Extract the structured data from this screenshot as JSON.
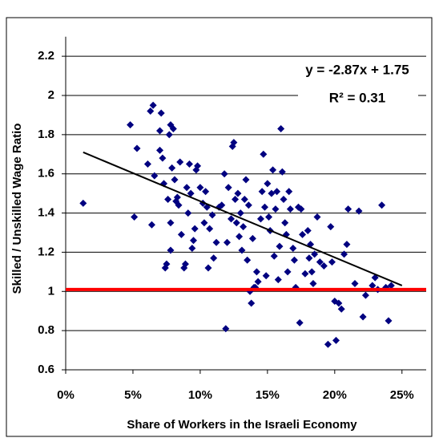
{
  "chart_data": {
    "type": "scatter",
    "x_label": "Share of Workers in the Israeli Economy",
    "y_label": "Skilled / Unskilled Wage Ratio",
    "annotations": [
      "y = -2.87x + 1.75",
      "R² = 0.31"
    ],
    "color": "#000080",
    "grid": true,
    "xlim": [
      0,
      26.8
    ],
    "ylim": [
      0.6,
      2.3
    ],
    "xticks": [
      {
        "value": 0,
        "label": "0%"
      },
      {
        "value": 5,
        "label": "5%"
      },
      {
        "value": 10,
        "label": "10%"
      },
      {
        "value": 15,
        "label": "15%"
      },
      {
        "value": 20,
        "label": "20%"
      },
      {
        "value": 25,
        "label": "25%"
      }
    ],
    "yticks": [
      0.6,
      0.8,
      1,
      1.2,
      1.4,
      1.6,
      1.8,
      2,
      2.2
    ],
    "trendline": {
      "color": "#000000",
      "x": [
        1.3,
        25
      ],
      "y": [
        1.71,
        1.03
      ]
    },
    "reference_line": {
      "value": 1.01,
      "color": "#ff0000"
    },
    "x": [
      1.3,
      4.8,
      5.1,
      5.3,
      6.1,
      6.3,
      6.5,
      6.4,
      6.6,
      7.0,
      7.0,
      7.1,
      7.2,
      7.3,
      7.4,
      7.5,
      7.6,
      7.7,
      7.8,
      7.9,
      7.8,
      7.8,
      8.0,
      8.1,
      8.2,
      8.3,
      8.4,
      8.5,
      8.6,
      8.8,
      8.9,
      9.0,
      9.1,
      9.2,
      9.3,
      9.4,
      9.5,
      9.6,
      9.7,
      9.8,
      10.0,
      10.2,
      10.3,
      10.4,
      10.5,
      10.6,
      10.7,
      10.9,
      11.0,
      11.2,
      11.4,
      11.6,
      11.8,
      11.9,
      12.0,
      12.1,
      12.3,
      12.4,
      12.5,
      12.6,
      12.7,
      12.8,
      12.9,
      13.0,
      13.1,
      13.2,
      13.3,
      13.4,
      13.5,
      13.6,
      13.7,
      13.8,
      13.9,
      14.0,
      14.1,
      14.2,
      14.3,
      14.5,
      14.6,
      14.7,
      14.8,
      14.9,
      15.0,
      15.1,
      15.2,
      15.3,
      15.4,
      15.5,
      15.6,
      15.7,
      15.8,
      15.9,
      16.0,
      16.1,
      16.2,
      16.3,
      16.4,
      16.5,
      16.6,
      16.7,
      16.9,
      17.0,
      17.1,
      17.3,
      17.4,
      17.5,
      17.6,
      17.8,
      18.0,
      18.1,
      18.2,
      18.3,
      18.4,
      18.5,
      18.7,
      18.9,
      19.2,
      19.5,
      19.7,
      19.8,
      20.0,
      20.1,
      20.3,
      20.5,
      20.7,
      20.9,
      21.0,
      21.5,
      21.8,
      22.1,
      22.3,
      22.8,
      23.0,
      23.2,
      23.5,
      23.8,
      24.0,
      24.2
    ],
    "values": [
      1.45,
      1.85,
      1.38,
      1.73,
      1.65,
      1.92,
      1.95,
      1.34,
      1.59,
      1.82,
      1.72,
      1.91,
      1.68,
      1.55,
      1.12,
      1.14,
      1.47,
      1.8,
      1.85,
      1.63,
      1.35,
      1.21,
      1.83,
      1.57,
      1.46,
      1.48,
      1.44,
      1.66,
      1.29,
      1.12,
      1.14,
      1.53,
      1.4,
      1.65,
      1.5,
      1.22,
      1.26,
      1.32,
      1.62,
      1.64,
      1.53,
      1.45,
      1.35,
      1.51,
      1.43,
      1.12,
      1.32,
      1.39,
      1.17,
      1.25,
      1.43,
      1.44,
      1.6,
      0.81,
      1.25,
      1.53,
      1.37,
      1.74,
      1.76,
      1.47,
      1.35,
      1.5,
      1.28,
      1.4,
      1.21,
      1.33,
      1.47,
      1.57,
      1.16,
      1.44,
      1.0,
      0.94,
      1.27,
      1.02,
      1.02,
      1.1,
      1.05,
      1.37,
      1.51,
      1.7,
      1.43,
      1.08,
      1.55,
      1.38,
      1.31,
      1.5,
      1.62,
      1.18,
      1.42,
      1.51,
      1.06,
      1.23,
      1.83,
      1.61,
      1.47,
      1.35,
      1.29,
      1.1,
      1.51,
      1.42,
      1.22,
      1.16,
      1.02,
      1.43,
      0.84,
      1.42,
      1.29,
      1.09,
      1.31,
      1.17,
      1.24,
      1.1,
      1.04,
      1.19,
      1.38,
      1.15,
      1.13,
      0.73,
      1.33,
      1.15,
      0.95,
      0.75,
      0.94,
      0.91,
      1.19,
      1.24,
      1.42,
      1.04,
      1.41,
      0.87,
      0.98,
      1.03,
      1.07,
      1.01,
      1.44,
      1.02,
      0.85,
      1.03
    ]
  }
}
